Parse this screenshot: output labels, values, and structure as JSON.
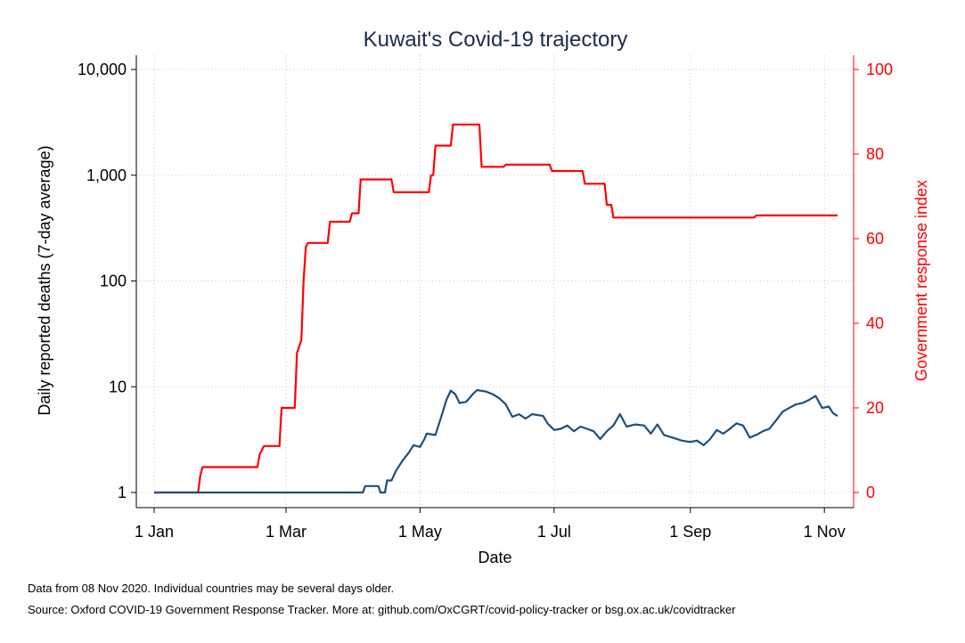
{
  "chart_data": {
    "type": "line",
    "title": "Kuwait's Covid-19 trajectory",
    "xlabel": "Date",
    "ylabel_left": "Daily reported deaths (7-day average)",
    "ylabel_right": "Government response index",
    "x_ticks": [
      "2020-01-01",
      "2020-03-01",
      "2020-05-01",
      "2020-07-01",
      "2020-09-01",
      "2020-11-01"
    ],
    "x_tick_labels": [
      "1 Jan",
      "1 Mar",
      "1 May",
      "1 Jul",
      "1 Sep",
      "1 Nov"
    ],
    "y_left_scale": "log",
    "y_left_ticks": [
      1,
      10,
      100,
      1000,
      10000
    ],
    "y_left_tick_labels": [
      "1",
      "10",
      "100",
      "1,000",
      "10,000"
    ],
    "y_right_ticks": [
      0,
      20,
      40,
      60,
      80,
      100
    ],
    "y_right_tick_labels": [
      "0",
      "20",
      "40",
      "60",
      "80",
      "100"
    ],
    "grid": true,
    "series": [
      {
        "axis": "right",
        "color": "#ff0000",
        "points": [
          [
            "2020-01-01",
            0
          ],
          [
            "2020-01-21",
            0
          ],
          [
            "2020-01-22",
            4
          ],
          [
            "2020-01-23",
            6
          ],
          [
            "2020-02-17",
            6
          ],
          [
            "2020-02-18",
            9
          ],
          [
            "2020-02-20",
            11
          ],
          [
            "2020-02-27",
            11
          ],
          [
            "2020-02-28",
            20
          ],
          [
            "2020-03-05",
            20
          ],
          [
            "2020-03-06",
            33
          ],
          [
            "2020-03-08",
            36
          ],
          [
            "2020-03-09",
            50
          ],
          [
            "2020-03-10",
            58
          ],
          [
            "2020-03-11",
            59
          ],
          [
            "2020-03-20",
            59
          ],
          [
            "2020-03-21",
            64
          ],
          [
            "2020-03-30",
            64
          ],
          [
            "2020-03-31",
            66
          ],
          [
            "2020-04-03",
            66
          ],
          [
            "2020-04-04",
            74
          ],
          [
            "2020-04-18",
            74
          ],
          [
            "2020-04-19",
            71
          ],
          [
            "2020-05-05",
            71
          ],
          [
            "2020-05-06",
            75
          ],
          [
            "2020-05-07",
            75
          ],
          [
            "2020-05-08",
            82
          ],
          [
            "2020-05-15",
            82
          ],
          [
            "2020-05-16",
            87
          ],
          [
            "2020-05-28",
            87
          ],
          [
            "2020-05-29",
            77
          ],
          [
            "2020-06-08",
            77
          ],
          [
            "2020-06-09",
            77.5
          ],
          [
            "2020-06-29",
            77.5
          ],
          [
            "2020-06-30",
            76
          ],
          [
            "2020-07-14",
            76
          ],
          [
            "2020-07-15",
            73
          ],
          [
            "2020-07-24",
            73
          ],
          [
            "2020-07-25",
            68
          ],
          [
            "2020-07-27",
            68
          ],
          [
            "2020-07-28",
            65
          ],
          [
            "2020-09-30",
            65
          ],
          [
            "2020-10-01",
            65.5
          ],
          [
            "2020-11-07",
            65.5
          ]
        ]
      },
      {
        "axis": "left",
        "color": "#1f4e79",
        "points": [
          [
            "2020-01-01",
            1
          ],
          [
            "2020-04-05",
            1
          ],
          [
            "2020-04-06",
            1.15
          ],
          [
            "2020-04-12",
            1.15
          ],
          [
            "2020-04-13",
            1
          ],
          [
            "2020-04-15",
            1
          ],
          [
            "2020-04-16",
            1.3
          ],
          [
            "2020-04-18",
            1.3
          ],
          [
            "2020-04-20",
            1.6
          ],
          [
            "2020-04-23",
            2
          ],
          [
            "2020-04-26",
            2.4
          ],
          [
            "2020-04-28",
            2.8
          ],
          [
            "2020-05-01",
            2.7
          ],
          [
            "2020-05-03",
            3.2
          ],
          [
            "2020-05-04",
            3.6
          ],
          [
            "2020-05-08",
            3.5
          ],
          [
            "2020-05-11",
            5.5
          ],
          [
            "2020-05-13",
            7.5
          ],
          [
            "2020-05-15",
            9.2
          ],
          [
            "2020-05-17",
            8.5
          ],
          [
            "2020-05-19",
            7
          ],
          [
            "2020-05-22",
            7.2
          ],
          [
            "2020-05-25",
            8.5
          ],
          [
            "2020-05-27",
            9.3
          ],
          [
            "2020-05-31",
            9
          ],
          [
            "2020-06-03",
            8.5
          ],
          [
            "2020-06-06",
            7.8
          ],
          [
            "2020-06-09",
            6.8
          ],
          [
            "2020-06-12",
            5.2
          ],
          [
            "2020-06-15",
            5.5
          ],
          [
            "2020-06-18",
            5
          ],
          [
            "2020-06-21",
            5.5
          ],
          [
            "2020-06-26",
            5.3
          ],
          [
            "2020-06-28",
            4.5
          ],
          [
            "2020-07-01",
            3.9
          ],
          [
            "2020-07-04",
            4
          ],
          [
            "2020-07-07",
            4.3
          ],
          [
            "2020-07-10",
            3.8
          ],
          [
            "2020-07-13",
            4.2
          ],
          [
            "2020-07-16",
            4
          ],
          [
            "2020-07-19",
            3.8
          ],
          [
            "2020-07-22",
            3.2
          ],
          [
            "2020-07-25",
            3.8
          ],
          [
            "2020-07-28",
            4.3
          ],
          [
            "2020-07-31",
            5.5
          ],
          [
            "2020-08-03",
            4.2
          ],
          [
            "2020-08-07",
            4.4
          ],
          [
            "2020-08-11",
            4.3
          ],
          [
            "2020-08-14",
            3.6
          ],
          [
            "2020-08-17",
            4.4
          ],
          [
            "2020-08-20",
            3.5
          ],
          [
            "2020-08-24",
            3.3
          ],
          [
            "2020-08-28",
            3.1
          ],
          [
            "2020-09-01",
            3.0
          ],
          [
            "2020-09-04",
            3.1
          ],
          [
            "2020-09-07",
            2.8
          ],
          [
            "2020-09-10",
            3.2
          ],
          [
            "2020-09-13",
            3.9
          ],
          [
            "2020-09-16",
            3.6
          ],
          [
            "2020-09-19",
            4.0
          ],
          [
            "2020-09-22",
            4.5
          ],
          [
            "2020-09-25",
            4.3
          ],
          [
            "2020-09-28",
            3.3
          ],
          [
            "2020-10-01",
            3.5
          ],
          [
            "2020-10-04",
            3.8
          ],
          [
            "2020-10-07",
            4.0
          ],
          [
            "2020-10-10",
            4.8
          ],
          [
            "2020-10-13",
            5.8
          ],
          [
            "2020-10-16",
            6.3
          ],
          [
            "2020-10-19",
            6.8
          ],
          [
            "2020-10-22",
            7.0
          ],
          [
            "2020-10-25",
            7.5
          ],
          [
            "2020-10-28",
            8.2
          ],
          [
            "2020-10-31",
            6.3
          ],
          [
            "2020-11-03",
            6.5
          ],
          [
            "2020-11-05",
            5.6
          ],
          [
            "2020-11-07",
            5.3
          ]
        ]
      }
    ]
  },
  "footnote": {
    "line1": "Data from 08 Nov 2020. Individual countries may be several days older.",
    "line2": "Source: Oxford COVID-19 Government Response Tracker. More at: github.com/OxCGRT/covid-policy-tracker or bsg.ox.ac.uk/covidtracker"
  }
}
